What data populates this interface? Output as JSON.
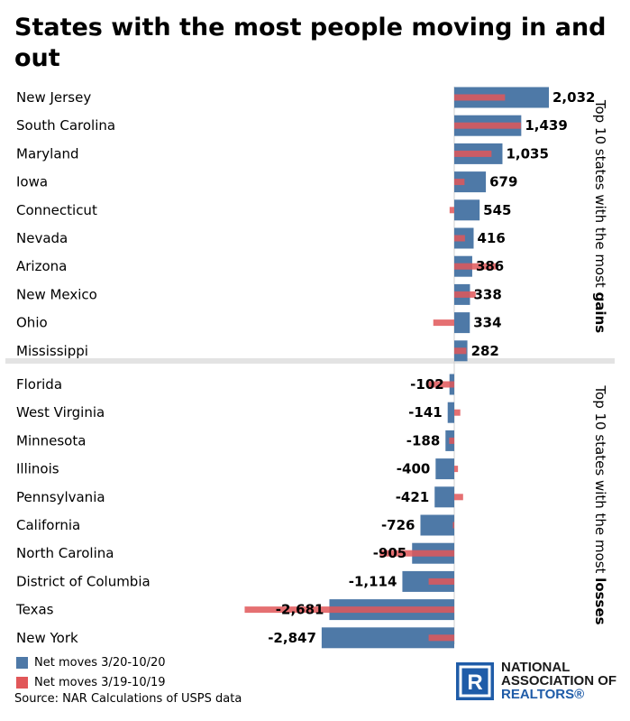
{
  "title": "States with the most people moving in and out",
  "chart_data": {
    "type": "bar",
    "orientation": "horizontal",
    "series": [
      {
        "name": "Net moves 3/20-10/20",
        "color": "#4e79a7",
        "values": [
          2032,
          1439,
          1035,
          679,
          545,
          416,
          386,
          338,
          334,
          282,
          -102,
          -141,
          -188,
          -400,
          -421,
          -726,
          -905,
          -1114,
          -2681,
          -2847
        ]
      },
      {
        "name": "Net moves 3/19-10/19",
        "color": "#e15759",
        "values": [
          1090,
          1430,
          800,
          220,
          -100,
          230,
          900,
          460,
          -450,
          260,
          -550,
          130,
          -110,
          80,
          190,
          -30,
          -1600,
          -550,
          -4500,
          -550
        ]
      }
    ],
    "categories": [
      "New Jersey",
      "South Carolina",
      "Maryland",
      "Iowa",
      "Connecticut",
      "Nevada",
      "Arizona",
      "New Mexico",
      "Ohio",
      "Mississippi",
      "Florida",
      "West Virginia",
      "Minnesota",
      "Illinois",
      "Pennsylvania",
      "California",
      "North Carolina",
      "District of Columbia",
      "Texas",
      "New York"
    ],
    "value_labels": [
      "2,032",
      "1,439",
      "1,035",
      "679",
      "545",
      "416",
      "386",
      "338",
      "334",
      "282",
      "-102",
      "-141",
      "-188",
      "-400",
      "-421",
      "-726",
      "-905",
      "-1,114",
      "-2,681",
      "-2,847"
    ],
    "groups": [
      {
        "title_prefix": "Top 10 states with the most ",
        "title_bold": "gains",
        "count": 10
      },
      {
        "title_prefix": "Top 10 states with the most ",
        "title_bold": "losses",
        "count": 10
      }
    ],
    "xlim": [
      -9500,
      3300
    ]
  },
  "legend": [
    {
      "label": "Net moves 3/20-10/20",
      "color": "#4e79a7"
    },
    {
      "label": "Net moves 3/19-10/19",
      "color": "#e15759"
    }
  ],
  "source": "Source: NAR Calculations of USPS data",
  "logo": {
    "line1": "NATIONAL",
    "line2": "ASSOCIATION OF",
    "line3": "REALTORS®",
    "mark": "R"
  }
}
